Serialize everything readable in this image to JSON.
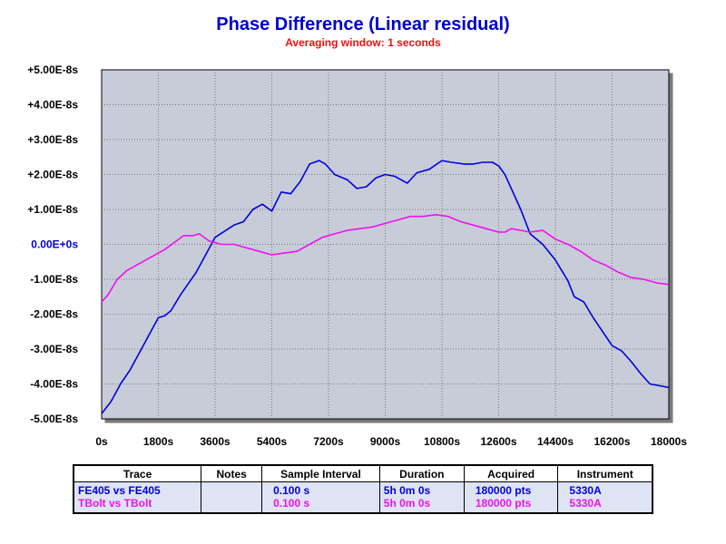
{
  "chart_data": {
    "type": "line",
    "title": "Phase Difference (Linear residual)",
    "subtitle": "Averaging window: 1 seconds",
    "xlabel": "",
    "ylabel": "",
    "xlim": [
      0,
      18000
    ],
    "ylim": [
      -5e-08,
      5e-08
    ],
    "x_ticks": [
      0,
      1800,
      3600,
      5400,
      7200,
      9000,
      10800,
      12600,
      14400,
      16200,
      18000
    ],
    "x_tick_labels": [
      "0s",
      "1800s",
      "3600s",
      "5400s",
      "7200s",
      "9000s",
      "10800s",
      "12600s",
      "14400s",
      "16200s",
      "18000s"
    ],
    "y_ticks": [
      5e-08,
      4e-08,
      3e-08,
      2e-08,
      1e-08,
      0,
      -1e-08,
      -2e-08,
      -3e-08,
      -4e-08,
      -5e-08
    ],
    "y_tick_labels": [
      "+5.00E-8s",
      "+4.00E-8s",
      "+3.00E-8s",
      "+2.00E-8s",
      "+1.00E-8s",
      "0.00E+0s",
      "-1.00E-8s",
      "-2.00E-8s",
      "-3.00E-8s",
      "-4.00E-8s",
      "-5.00E-8s"
    ],
    "grid": true,
    "plot_background": "#c8ccd8",
    "series": [
      {
        "name": "FE405 vs FE405",
        "color": "#0000dd",
        "x": [
          0,
          300,
          600,
          900,
          1200,
          1500,
          1800,
          2000,
          2200,
          2500,
          3000,
          3300,
          3600,
          4200,
          4500,
          4800,
          5100,
          5400,
          5700,
          6000,
          6300,
          6600,
          6900,
          7100,
          7400,
          7800,
          8100,
          8400,
          8700,
          9000,
          9300,
          9700,
          10000,
          10400,
          10800,
          11100,
          11500,
          11800,
          12100,
          12400,
          12600,
          12800,
          13000,
          13300,
          13600,
          14000,
          14400,
          14800,
          15000,
          15300,
          15600,
          15900,
          16200,
          16500,
          16800,
          17100,
          17400,
          17700,
          18000
        ],
        "values": [
          -4.85e-08,
          -4.5e-08,
          -4e-08,
          -3.6e-08,
          -3.1e-08,
          -2.6e-08,
          -2.1e-08,
          -2.05e-08,
          -1.9e-08,
          -1.45e-08,
          -8e-09,
          -3e-09,
          2e-09,
          5.5e-09,
          6.5e-09,
          1e-08,
          1.15e-08,
          9.5e-09,
          1.5e-08,
          1.45e-08,
          1.8e-08,
          2.3e-08,
          2.4e-08,
          2.3e-08,
          2e-08,
          1.85e-08,
          1.6e-08,
          1.65e-08,
          1.9e-08,
          2e-08,
          1.95e-08,
          1.75e-08,
          2.05e-08,
          2.15e-08,
          2.4e-08,
          2.35e-08,
          2.3e-08,
          2.3e-08,
          2.35e-08,
          2.35e-08,
          2.25e-08,
          2e-08,
          1.6e-08,
          1e-08,
          3e-09,
          0.0,
          -4.5e-09,
          -1.05e-08,
          -1.5e-08,
          -1.65e-08,
          -2.1e-08,
          -2.5e-08,
          -2.9e-08,
          -3.05e-08,
          -3.35e-08,
          -3.7e-08,
          -4e-08,
          -4.05e-08,
          -4.1e-08
        ]
      },
      {
        "name": "TBolt vs TBolt",
        "color": "#ee11ee",
        "x": [
          0,
          200,
          500,
          800,
          1100,
          1400,
          1700,
          2000,
          2300,
          2600,
          2900,
          3100,
          3400,
          3800,
          4200,
          4600,
          5000,
          5400,
          5800,
          6200,
          6600,
          7000,
          7400,
          7800,
          8200,
          8600,
          9000,
          9400,
          9800,
          10200,
          10600,
          11000,
          11400,
          11800,
          12200,
          12600,
          12800,
          13000,
          13300,
          13600,
          14000,
          14400,
          14800,
          15200,
          15600,
          16000,
          16400,
          16800,
          17200,
          17600,
          18000
        ],
        "values": [
          -1.65e-08,
          -1.45e-08,
          -1e-08,
          -7.5e-09,
          -6e-09,
          -4.5e-09,
          -3e-09,
          -1.5e-09,
          5e-10,
          2.5e-09,
          2.5e-09,
          3e-09,
          1e-09,
          0.0,
          0.0,
          -1e-09,
          -2e-09,
          -3e-09,
          -2.5e-09,
          -2e-09,
          0.0,
          2e-09,
          3e-09,
          4e-09,
          4.5e-09,
          5e-09,
          6e-09,
          7e-09,
          8e-09,
          8e-09,
          8.5e-09,
          8e-09,
          6.5e-09,
          5.5e-09,
          4.5e-09,
          3.5e-09,
          3.5e-09,
          4.5e-09,
          4e-09,
          3.5e-09,
          4e-09,
          1.5e-09,
          0.0,
          -2e-09,
          -4.5e-09,
          -6e-09,
          -8e-09,
          -9.5e-09,
          -1e-08,
          -1.1e-08,
          -1.15e-08
        ]
      }
    ]
  },
  "legend_table": {
    "headers": [
      "Trace",
      "Notes",
      "Sample Interval",
      "Duration",
      "Acquired",
      "Instrument"
    ],
    "rows": [
      {
        "trace": "FE405 vs FE405",
        "notes": "",
        "interval": "0.100 s",
        "duration": "5h 0m 0s",
        "acquired": "180000 pts",
        "instrument": "5330A",
        "color": "#0000dd"
      },
      {
        "trace": "TBolt vs TBolt",
        "notes": "",
        "interval": "0.100 s",
        "duration": "5h 0m 0s",
        "acquired": "180000 pts",
        "instrument": "5330A",
        "color": "#ee11ee"
      }
    ]
  }
}
